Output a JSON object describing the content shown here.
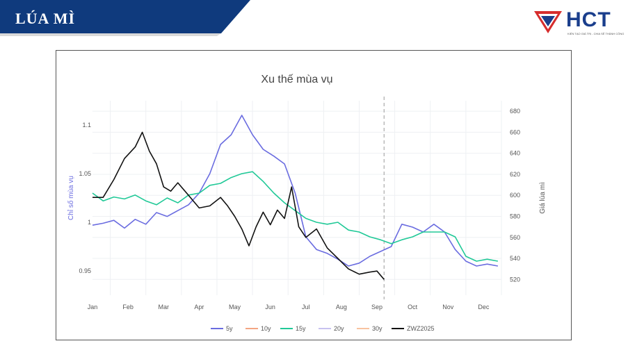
{
  "header": {
    "title": "LÚA MÌ",
    "banner_color": "#0f3a7d",
    "logo_text": "HCT",
    "logo_tagline": "KIẾN TẠO GIÁ TRỊ - CHIA SẺ THÀNH CÔNG",
    "logo_colors": [
      "#1a3e8c",
      "#d62d2d"
    ]
  },
  "chart_data": {
    "type": "line",
    "title": "Xu thế mùa vụ",
    "ylabel_left": "Chỉ số mùa vụ",
    "ylabel_right": "Giá lúa mì",
    "months": [
      "Jan",
      "Feb",
      "Mar",
      "Apr",
      "May",
      "Jun",
      "Jul",
      "Aug",
      "Sep",
      "Oct",
      "Nov",
      "Dec"
    ],
    "y_left_ticks": [
      "0.95",
      "1",
      "1.05",
      "1.1"
    ],
    "y_left_range": [
      0.925,
      1.125
    ],
    "y_right_ticks": [
      520,
      540,
      560,
      580,
      600,
      620,
      640,
      660,
      680
    ],
    "y_right_range": [
      505,
      690
    ],
    "x_range": [
      0,
      11.5
    ],
    "current_marker_x": 8.2,
    "grid": true,
    "legend_position": "bottom",
    "legend": [
      "5y",
      "10y",
      "15y",
      "20y",
      "30y",
      "ZWZ2025"
    ],
    "series": [
      {
        "name": "5y",
        "axis": "left",
        "color": "#6a6ce0",
        "x": [
          0,
          0.3,
          0.6,
          0.9,
          1.2,
          1.5,
          1.8,
          2.1,
          2.4,
          2.7,
          3.0,
          3.3,
          3.6,
          3.9,
          4.2,
          4.5,
          4.8,
          5.1,
          5.4,
          5.7,
          6.0,
          6.3,
          6.6,
          6.9,
          7.2,
          7.5,
          7.8,
          8.1,
          8.4,
          8.7,
          9.0,
          9.3,
          9.6,
          9.9,
          10.2,
          10.5,
          10.8,
          11.1,
          11.4
        ],
        "y": [
          0.997,
          0.999,
          1.002,
          0.994,
          1.003,
          0.998,
          1.01,
          1.006,
          1.012,
          1.018,
          1.03,
          1.05,
          1.08,
          1.09,
          1.11,
          1.09,
          1.075,
          1.068,
          1.06,
          1.03,
          0.985,
          0.972,
          0.968,
          0.962,
          0.955,
          0.958,
          0.965,
          0.97,
          0.975,
          0.998,
          0.995,
          0.99,
          0.998,
          0.99,
          0.972,
          0.96,
          0.955,
          0.957,
          0.955
        ]
      },
      {
        "name": "15y",
        "axis": "left",
        "color": "#20c997",
        "x": [
          0,
          0.3,
          0.6,
          0.9,
          1.2,
          1.5,
          1.8,
          2.1,
          2.4,
          2.7,
          3.0,
          3.3,
          3.6,
          3.9,
          4.2,
          4.5,
          4.8,
          5.1,
          5.4,
          5.7,
          6.0,
          6.3,
          6.6,
          6.9,
          7.2,
          7.5,
          7.8,
          8.1,
          8.4,
          8.7,
          9.0,
          9.3,
          9.6,
          9.9,
          10.2,
          10.5,
          10.8,
          11.1,
          11.4
        ],
        "y": [
          1.03,
          1.022,
          1.026,
          1.024,
          1.028,
          1.022,
          1.018,
          1.025,
          1.02,
          1.028,
          1.03,
          1.038,
          1.04,
          1.046,
          1.05,
          1.052,
          1.042,
          1.03,
          1.02,
          1.012,
          1.004,
          1.0,
          0.998,
          1.0,
          0.992,
          0.99,
          0.985,
          0.982,
          0.978,
          0.982,
          0.985,
          0.99,
          0.99,
          0.99,
          0.985,
          0.965,
          0.96,
          0.962,
          0.96
        ]
      },
      {
        "name": "ZWZ2025",
        "axis": "right",
        "color": "#111111",
        "x": [
          0,
          0.3,
          0.6,
          0.9,
          1.2,
          1.4,
          1.6,
          1.8,
          2.0,
          2.2,
          2.4,
          2.7,
          3.0,
          3.3,
          3.6,
          3.8,
          4.0,
          4.2,
          4.4,
          4.6,
          4.8,
          5.0,
          5.2,
          5.4,
          5.6,
          5.8,
          6.0,
          6.3,
          6.6,
          6.9,
          7.2,
          7.5,
          7.8,
          8.0,
          8.2
        ],
        "y": [
          598,
          598,
          615,
          635,
          646,
          660,
          642,
          630,
          608,
          604,
          612,
          600,
          588,
          590,
          598,
          590,
          580,
          568,
          552,
          570,
          584,
          572,
          586,
          578,
          608,
          570,
          560,
          568,
          550,
          540,
          530,
          525,
          527,
          528,
          520
        ]
      }
    ]
  }
}
